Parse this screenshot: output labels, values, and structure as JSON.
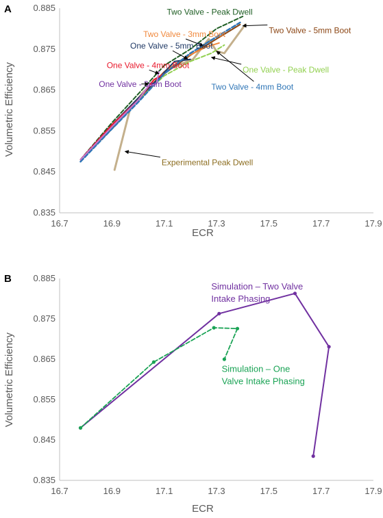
{
  "chart_data": [
    {
      "panel": "A",
      "type": "line",
      "xlabel": "ECR",
      "ylabel": "Volumetric Efficiency",
      "xlim": [
        16.7,
        17.9
      ],
      "ylim": [
        0.835,
        0.885
      ],
      "xticks": [
        "16.7",
        "16.9",
        "17.1",
        "17.3",
        "17.5",
        "17.7",
        "17.9"
      ],
      "yticks": [
        "0.835",
        "0.845",
        "0.855",
        "0.865",
        "0.875",
        "0.885"
      ],
      "grid": false,
      "series": [
        {
          "name": "Experimental Peak Dwell",
          "color": "#c4b08c",
          "dash": "solid",
          "width": 3,
          "x": [
            16.91,
            16.97,
            17.02,
            17.08,
            17.13,
            17.21,
            17.27,
            17.3,
            17.33,
            17.41
          ],
          "y": [
            0.8455,
            0.8605,
            0.8645,
            0.868,
            0.8705,
            0.8725,
            0.8775,
            0.8745,
            0.874,
            0.881
          ]
        },
        {
          "name": "Two Valve - Peak Dwell",
          "color": "#1f5e24",
          "dash": "dash",
          "width": 2,
          "x": [
            16.78,
            16.9,
            17.0,
            17.1,
            17.2,
            17.3,
            17.4
          ],
          "y": [
            0.848,
            0.857,
            0.864,
            0.871,
            0.875,
            0.88,
            0.883
          ]
        },
        {
          "name": "Two Valve - 5mm Boot",
          "color": "#8b4513",
          "dash": "solid",
          "width": 2,
          "x": [
            16.78,
            16.9,
            17.0,
            17.1,
            17.2,
            17.3,
            17.39
          ],
          "y": [
            0.848,
            0.8555,
            0.8625,
            0.869,
            0.8735,
            0.8775,
            0.881
          ]
        },
        {
          "name": "Two Valve - 3mm Boot",
          "color": "#f0883c",
          "dash": "solid",
          "width": 2,
          "x": [
            16.78,
            16.9,
            17.0,
            17.1,
            17.18,
            17.26,
            17.31
          ],
          "y": [
            0.848,
            0.856,
            0.863,
            0.8695,
            0.873,
            0.8755,
            0.8765
          ]
        },
        {
          "name": "One Valve - 5mm Boot",
          "color": "#1f3864",
          "dash": "solid",
          "width": 2,
          "x": [
            16.78,
            16.9,
            17.0,
            17.08,
            17.14,
            17.2
          ],
          "y": [
            0.848,
            0.8565,
            0.863,
            0.868,
            0.872,
            0.8725
          ]
        },
        {
          "name": "One Valve - Peak Dwell",
          "color": "#92d050",
          "dash": "dash",
          "width": 2,
          "x": [
            16.78,
            16.9,
            17.0,
            17.1,
            17.2,
            17.28,
            17.33
          ],
          "y": [
            0.848,
            0.856,
            0.8625,
            0.8685,
            0.872,
            0.874,
            0.876
          ]
        },
        {
          "name": "One Valve - 4mm Boot",
          "color": "#e8192c",
          "dash": "solid",
          "width": 2,
          "x": [
            16.78,
            16.9,
            17.0,
            17.06,
            17.1
          ],
          "y": [
            0.848,
            0.8565,
            0.8625,
            0.8675,
            0.869
          ]
        },
        {
          "name": "Two Valve - 4mm Boot",
          "color": "#2e75b6",
          "dash": "dash",
          "width": 2.5,
          "x": [
            16.78,
            16.9,
            17.0,
            17.1,
            17.2,
            17.3,
            17.39
          ],
          "y": [
            0.8475,
            0.8555,
            0.862,
            0.869,
            0.874,
            0.878,
            0.8815
          ]
        },
        {
          "name": "One Valve - 3mm Boot",
          "color": "#c478d0",
          "dash": "solid",
          "width": 2,
          "x": [
            16.78,
            16.9,
            17.0,
            17.04,
            17.07,
            17.08
          ],
          "y": [
            0.848,
            0.856,
            0.8625,
            0.866,
            0.8665,
            0.8695
          ]
        }
      ],
      "annotations": [
        {
          "text": "Two Valve - Peak Dwell",
          "series": 1,
          "color": "#1f5e24",
          "tx": 17.11,
          "ty": 0.8834,
          "px": 17.4,
          "py": 0.8828,
          "arrow": false
        },
        {
          "text": "Two Valve - 5mm Boot",
          "series": 2,
          "color": "#8b4513",
          "tx": 17.5,
          "ty": 0.8789,
          "px": 17.4,
          "py": 0.8807,
          "arrow": true
        },
        {
          "text": "Two Valve - 3mm Boot",
          "series": 3,
          "color": "#f0883c",
          "tx": 17.02,
          "ty": 0.878,
          "px": 17.25,
          "py": 0.8758,
          "arrow": true
        },
        {
          "text": "One Valve - 5mm Boot",
          "series": 4,
          "color": "#1f3864",
          "tx": 16.97,
          "ty": 0.8751,
          "px": 17.19,
          "py": 0.8726,
          "arrow": true
        },
        {
          "text": "One Valve - 4mm Boot",
          "series": 6,
          "color": "#e8192c",
          "tx": 16.88,
          "ty": 0.8704,
          "px": 17.08,
          "py": 0.869,
          "arrow": true
        },
        {
          "text": "One Valve - Peak Dwell",
          "series": 5,
          "color": "#92d050",
          "tx": 17.4,
          "ty": 0.8693,
          "px": 17.28,
          "py": 0.873,
          "arrow": true
        },
        {
          "text": "One Valve - 3mm Boot",
          "series": 8,
          "color": "#7030a0",
          "tx": 16.85,
          "ty": 0.8658,
          "px": 17.04,
          "py": 0.8665,
          "arrow": true
        },
        {
          "text": "Two Valve - 4mm Boot",
          "series": 7,
          "color": "#2e75b6",
          "tx": 17.28,
          "ty": 0.8651,
          "px": 17.3,
          "py": 0.8745,
          "arrow": true
        },
        {
          "text": "Experimental Peak Dwell",
          "series": 0,
          "color": "#8c6d20",
          "tx": 17.09,
          "ty": 0.8466,
          "px": 16.95,
          "py": 0.85,
          "arrow": true
        }
      ]
    },
    {
      "panel": "B",
      "type": "line",
      "xlabel": "ECR",
      "ylabel": "Volumetric Efficiency",
      "xlim": [
        16.7,
        17.9
      ],
      "ylim": [
        0.835,
        0.885
      ],
      "xticks": [
        "16.7",
        "16.9",
        "17.1",
        "17.3",
        "17.5",
        "17.7",
        "17.9"
      ],
      "yticks": [
        "0.835",
        "0.845",
        "0.855",
        "0.865",
        "0.875",
        "0.885"
      ],
      "grid": false,
      "series": [
        {
          "name": "Simulation – Two Valve Intake Phasing",
          "color": "#7030a0",
          "dash": "solid",
          "width": 2,
          "x": [
            16.78,
            17.31,
            17.6,
            17.73,
            17.67
          ],
          "y": [
            0.848,
            0.8763,
            0.8813,
            0.8681,
            0.841
          ]
        },
        {
          "name": "Simulation – One Valve Intake Phasing",
          "color": "#1aa355",
          "dash": "dash",
          "width": 1.8,
          "x": [
            16.78,
            17.06,
            17.29,
            17.38,
            17.33
          ],
          "y": [
            0.848,
            0.8643,
            0.8728,
            0.8726,
            0.865
          ]
        }
      ],
      "annotations": [
        {
          "lines": [
            "Simulation – Two Valve",
            "Intake Phasing"
          ],
          "color": "#7030a0",
          "tx": 17.28,
          "ty": 0.8823
        },
        {
          "lines": [
            "Simulation – One",
            "Valve Intake Phasing"
          ],
          "color": "#1aa355",
          "tx": 17.32,
          "ty": 0.8619
        }
      ]
    }
  ]
}
